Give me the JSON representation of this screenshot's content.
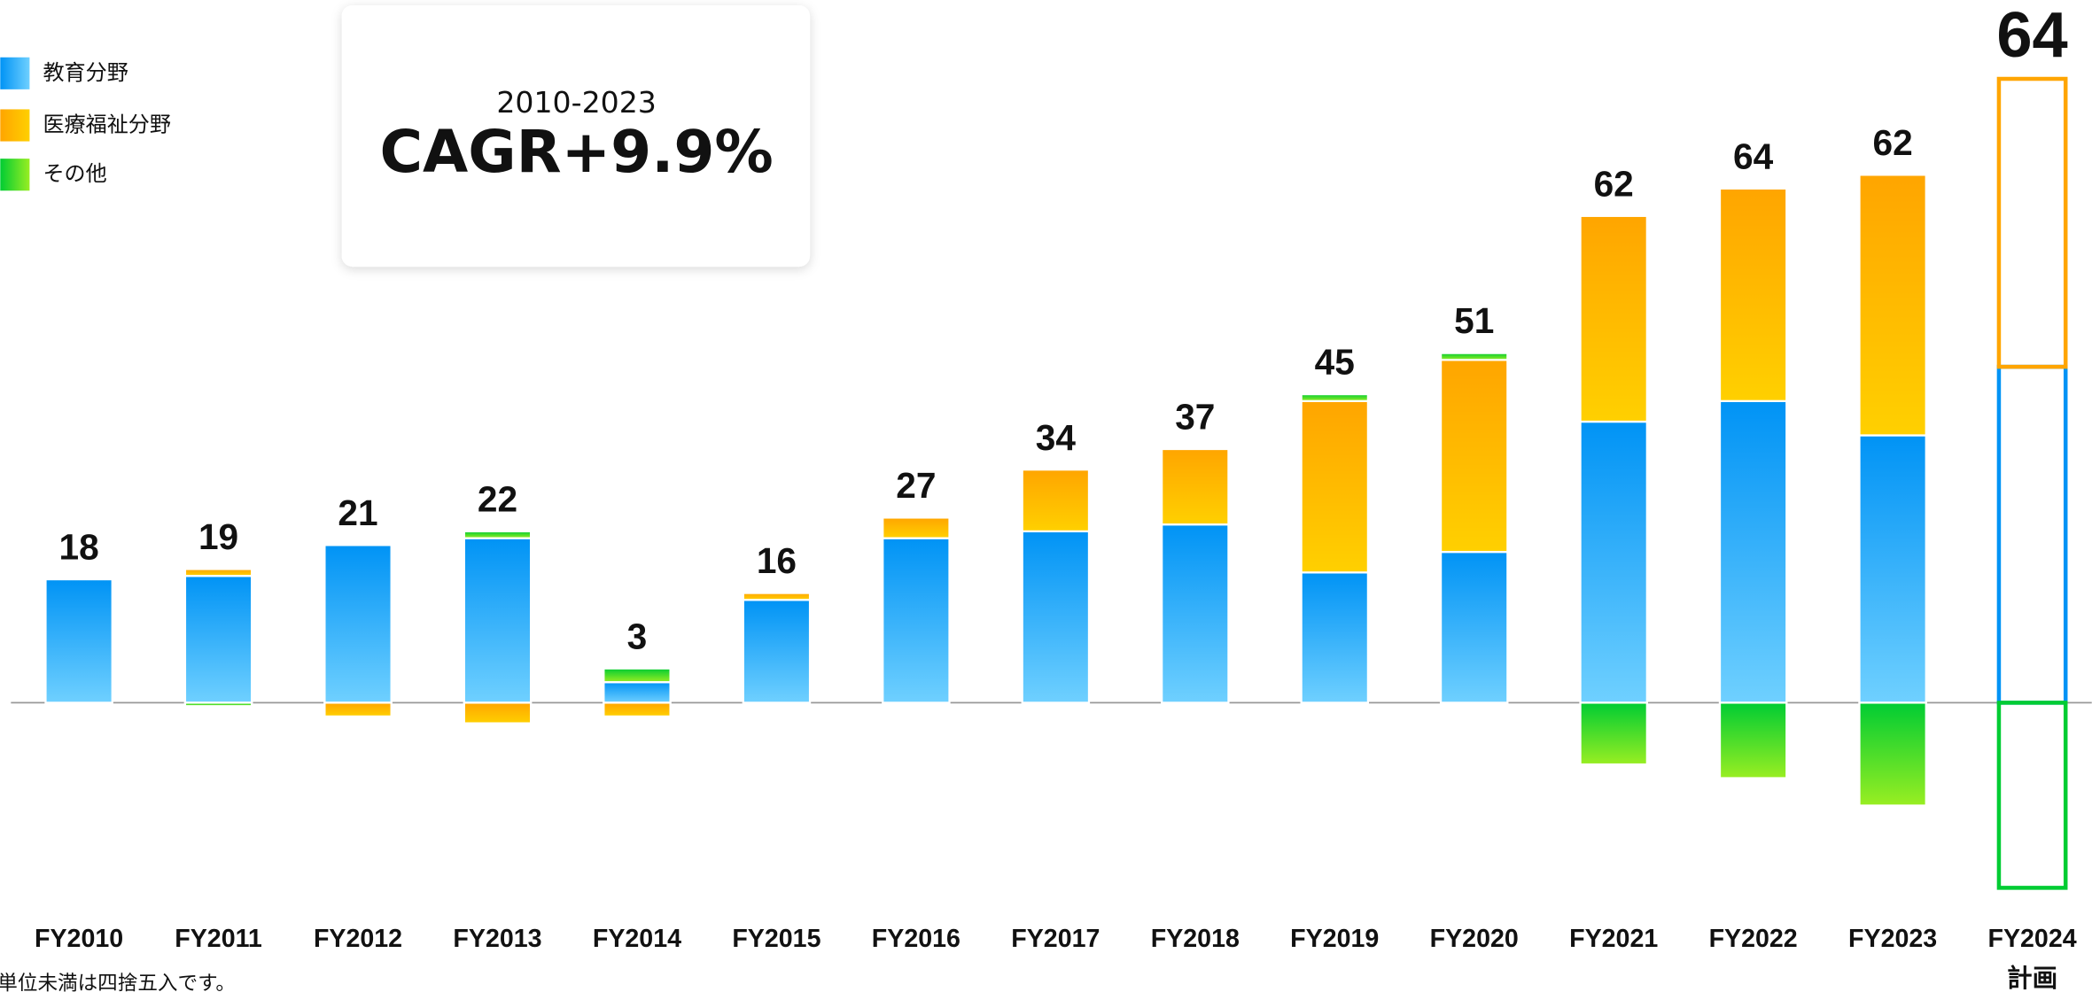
{
  "chart_data": {
    "type": "stacked_bar",
    "categories": [
      "FY2010",
      "FY2011",
      "FY2012",
      "FY2013",
      "FY2014",
      "FY2015",
      "FY2016",
      "FY2017",
      "FY2018",
      "FY2019",
      "FY2020",
      "FY2021",
      "FY2022",
      "FY2023",
      "FY2024"
    ],
    "category_sublabels": [
      null,
      null,
      null,
      null,
      null,
      null,
      null,
      null,
      null,
      null,
      null,
      null,
      null,
      null,
      "計画"
    ],
    "series": [
      {
        "name": "教育分野",
        "color": "#0093f5",
        "color_end": "#6fd0ff",
        "values": [
          18,
          18.5,
          23,
          24,
          3,
          15,
          24,
          25,
          26,
          19,
          22,
          41,
          44,
          39,
          49
        ]
      },
      {
        "name": "医療福祉分野",
        "color": "#ffa500",
        "color_end": "#ffd000",
        "values": [
          0,
          1,
          -2,
          -3,
          -2,
          1,
          3,
          9,
          11,
          25,
          28,
          30,
          31,
          38,
          42
        ]
      },
      {
        "name": "その他",
        "color": "#00cc33",
        "color_end": "#99ee22",
        "values": [
          0,
          -0.5,
          0,
          1,
          2,
          0,
          0,
          0,
          0,
          1,
          1,
          -9,
          -11,
          -15,
          -27
        ]
      }
    ],
    "totals": [
      18,
      19,
      21,
      22,
      3,
      16,
      27,
      34,
      37,
      45,
      51,
      62,
      64,
      62,
      64
    ],
    "ylim": [
      -42,
      102.5
    ],
    "annotation": {
      "period": "2010-2023",
      "text": "CAGR+9.9%"
    },
    "footnote": "単位未満は四捨五入です。"
  }
}
